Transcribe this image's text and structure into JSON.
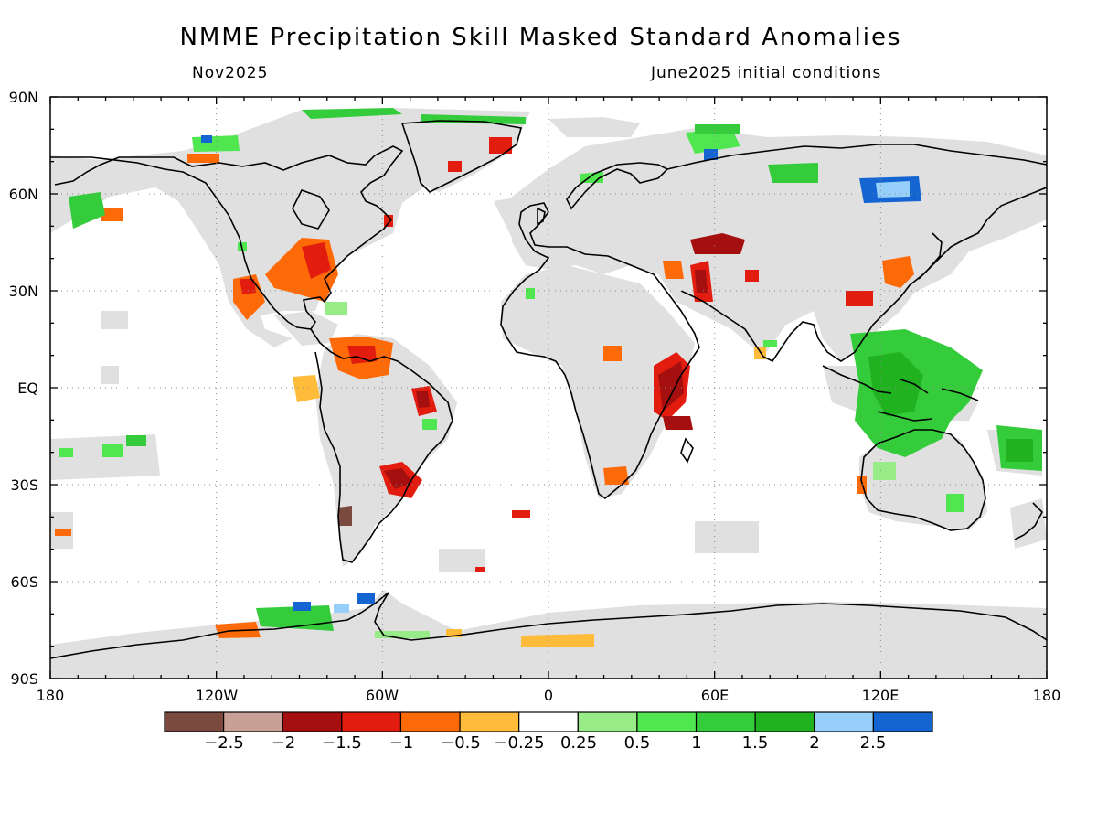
{
  "title": "NMME Precipitation Skill Masked Standard Anomalies",
  "subtitle_left": "Nov2025",
  "subtitle_right": "June2025 initial conditions",
  "lat_labels": [
    "90N",
    "60N",
    "30N",
    "EQ",
    "30S",
    "60S",
    "90S"
  ],
  "lon_labels": [
    "180",
    "120W",
    "60W",
    "0",
    "60E",
    "120E",
    "180"
  ],
  "colors": {
    "land_masked": "#e0e0e0",
    "coast": "#000000",
    "bins": [
      "#7b4a3f",
      "#c9a095",
      "#a50f0f",
      "#e21d0f",
      "#ff6a08",
      "#ffbb3a",
      "#ffffff",
      "#98ec88",
      "#50e650",
      "#35cc3b",
      "#20b21f",
      "#96d0fa",
      "#1464d2"
    ]
  },
  "colorbar_labels": [
    "−2.5",
    "−2",
    "−1.5",
    "−1",
    "−0.5",
    "−0.25",
    "0.25",
    "0.5",
    "1",
    "1.5",
    "2",
    "2.5"
  ]
}
